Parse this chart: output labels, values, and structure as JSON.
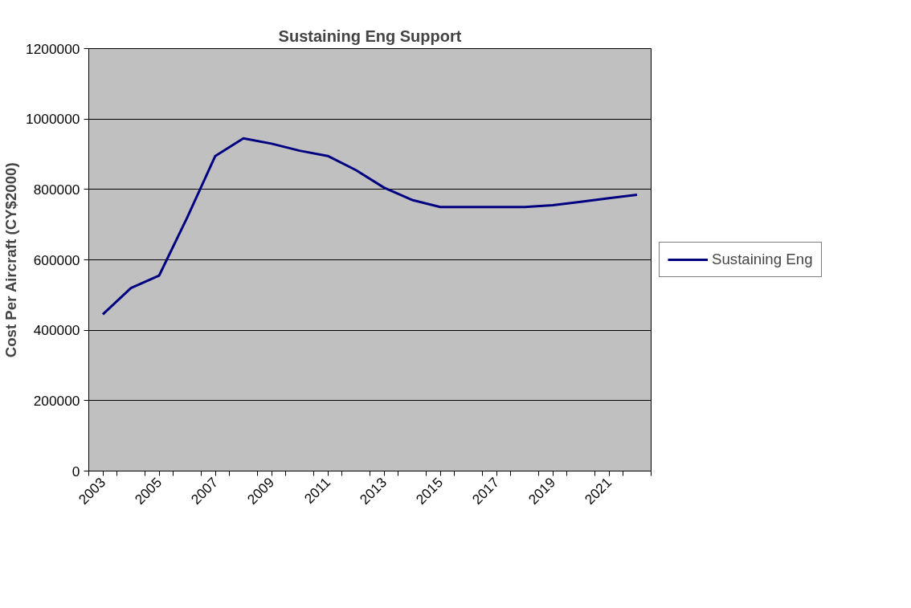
{
  "chart_data": {
    "type": "line",
    "title": "Sustaining Eng Support",
    "ylabel": "Cost Per Aircraft (CY$2000)",
    "categories": [
      "2003",
      null,
      "2005",
      null,
      "2007",
      null,
      "2009",
      null,
      "2011",
      null,
      "2013",
      null,
      "2015",
      null,
      "2017",
      null,
      "2019",
      null,
      "2021",
      null
    ],
    "series": [
      {
        "name": "Sustaining Eng",
        "color": "#000080",
        "values": [
          445000,
          520000,
          555000,
          720000,
          895000,
          945000,
          930000,
          910000,
          895000,
          855000,
          805000,
          770000,
          750000,
          750000,
          750000,
          750000,
          755000,
          765000,
          775000,
          785000
        ]
      }
    ],
    "ylim": [
      0,
      1200000
    ],
    "yticks": [
      0,
      200000,
      400000,
      600000,
      800000,
      1000000,
      1200000
    ],
    "grid": "y",
    "legend": "right",
    "marker": "none",
    "line_style": "solid"
  }
}
